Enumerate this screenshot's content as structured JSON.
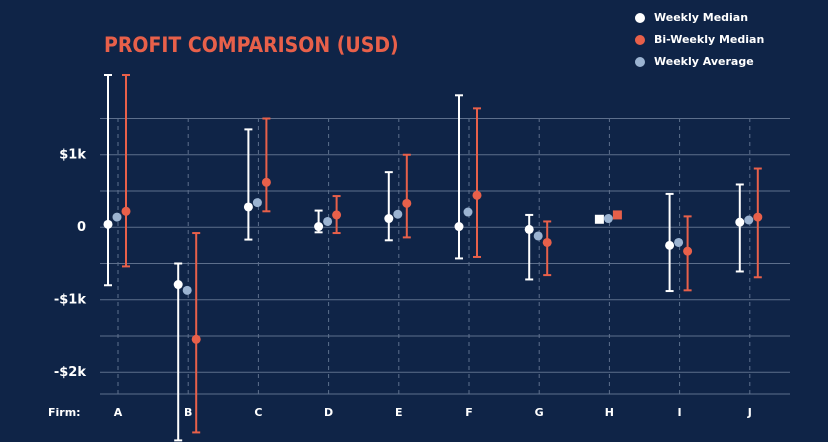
{
  "chart_data": {
    "type": "errorbar",
    "title": "PROFIT COMPARISON (USD)",
    "x_label": "Firm:",
    "categories": [
      "A",
      "B",
      "C",
      "D",
      "E",
      "F",
      "G",
      "H",
      "I",
      "J"
    ],
    "series": [
      {
        "name": "Weekly Median",
        "color": "#ffffff",
        "offset": -10,
        "values": [
          40,
          -790,
          280,
          10,
          120,
          10,
          -30,
          110,
          -250,
          70
        ],
        "lows": [
          -800,
          -2940,
          -170,
          -70,
          -180,
          -430,
          -720,
          null,
          -880,
          -610
        ],
        "highs": [
          2100,
          -500,
          1350,
          230,
          760,
          1820,
          170,
          null,
          460,
          590
        ]
      },
      {
        "name": "Bi-Weekly Median",
        "color": "#e8604a",
        "offset": 8,
        "values": [
          220,
          -1545,
          620,
          170,
          330,
          440,
          -210,
          170,
          -330,
          140
        ],
        "lows": [
          -540,
          -2830,
          220,
          -80,
          -140,
          -410,
          -660,
          null,
          -870,
          -690
        ],
        "highs": [
          2100,
          -80,
          1500,
          430,
          1000,
          1640,
          80,
          null,
          150,
          810
        ]
      },
      {
        "name": "Weekly Average",
        "color": "#9bb3d1",
        "offset": -1,
        "values": [
          140,
          -870,
          340,
          80,
          180,
          210,
          -120,
          120,
          -210,
          100
        ]
      }
    ],
    "ylim": [
      -2300,
      2100
    ],
    "yticks": [
      {
        "value": -2000,
        "label": "-$2k"
      },
      {
        "value": -1000,
        "label": "-$1k"
      },
      0,
      {
        "value": 1000,
        "label": "$1k"
      }
    ],
    "minor_yticks": [
      -1500,
      -500,
      500,
      1500
    ],
    "grid": true,
    "legend": "top-right",
    "background": "#0f2447"
  }
}
